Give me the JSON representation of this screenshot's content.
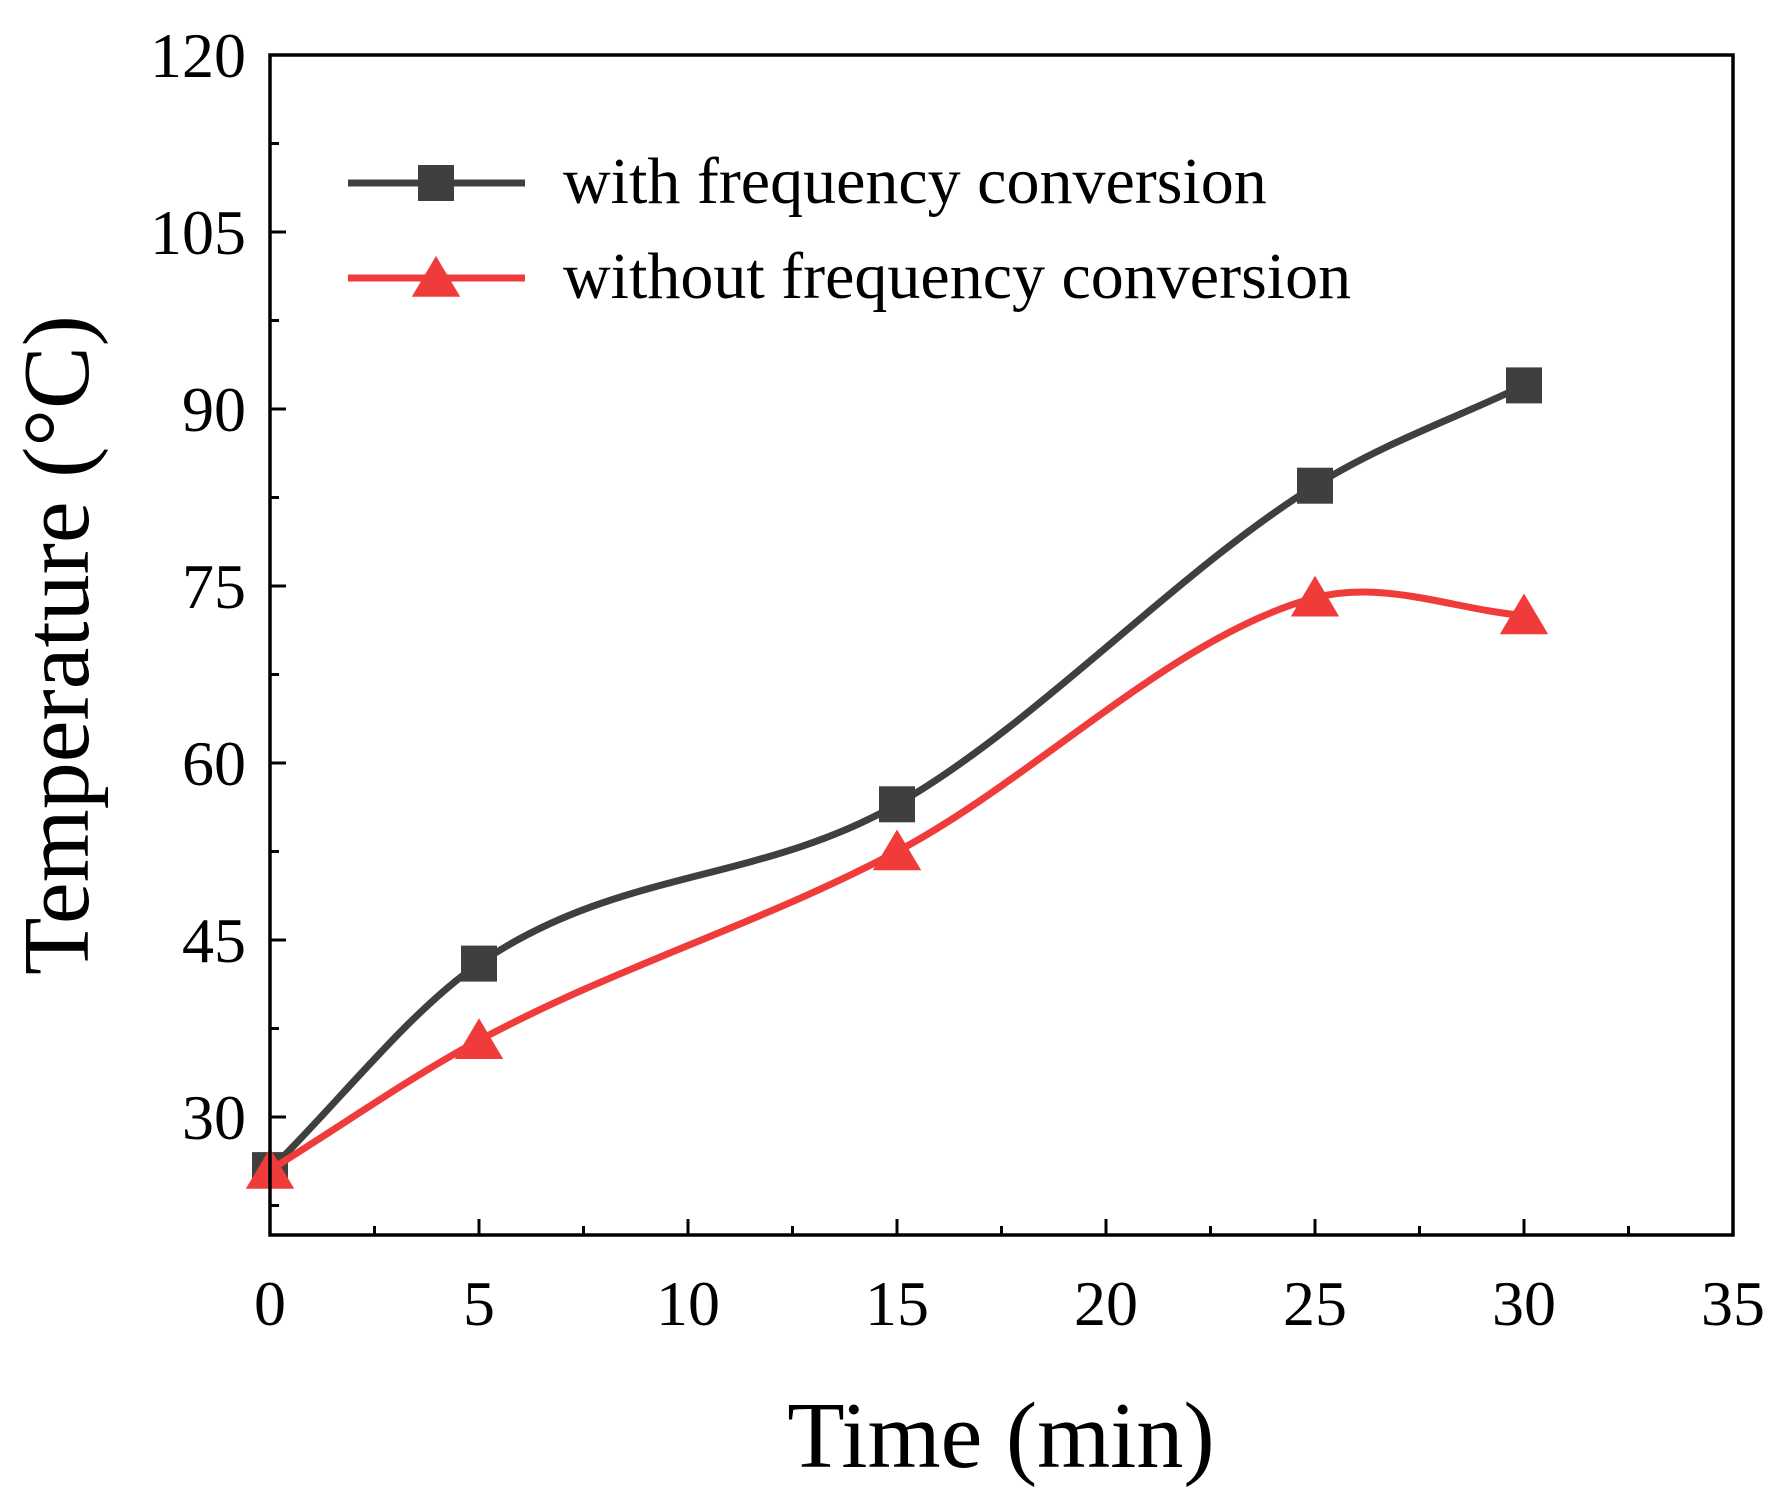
{
  "chart_data": {
    "type": "line",
    "title": "",
    "xlabel": "Time (min)",
    "ylabel": "Temperature (°C)",
    "xlim": [
      0,
      35
    ],
    "ylim": [
      20,
      120
    ],
    "xticks": [
      0,
      5,
      10,
      15,
      20,
      25,
      30,
      35
    ],
    "yticks": [
      30,
      45,
      60,
      75,
      90,
      105,
      120
    ],
    "grid": false,
    "legend_position": "top-left",
    "series": [
      {
        "name": "with frequency conversion",
        "color": "#3f3f3f",
        "marker": "square",
        "x": [
          0,
          5,
          15,
          25,
          30
        ],
        "y": [
          25.5,
          43,
          56.5,
          83.5,
          92
        ]
      },
      {
        "name": "without frequency conversion",
        "color": "#f03b3b",
        "marker": "triangle",
        "x": [
          0,
          5,
          15,
          25,
          30
        ],
        "y": [
          25.5,
          36.5,
          52.5,
          74,
          72.5
        ]
      }
    ]
  }
}
